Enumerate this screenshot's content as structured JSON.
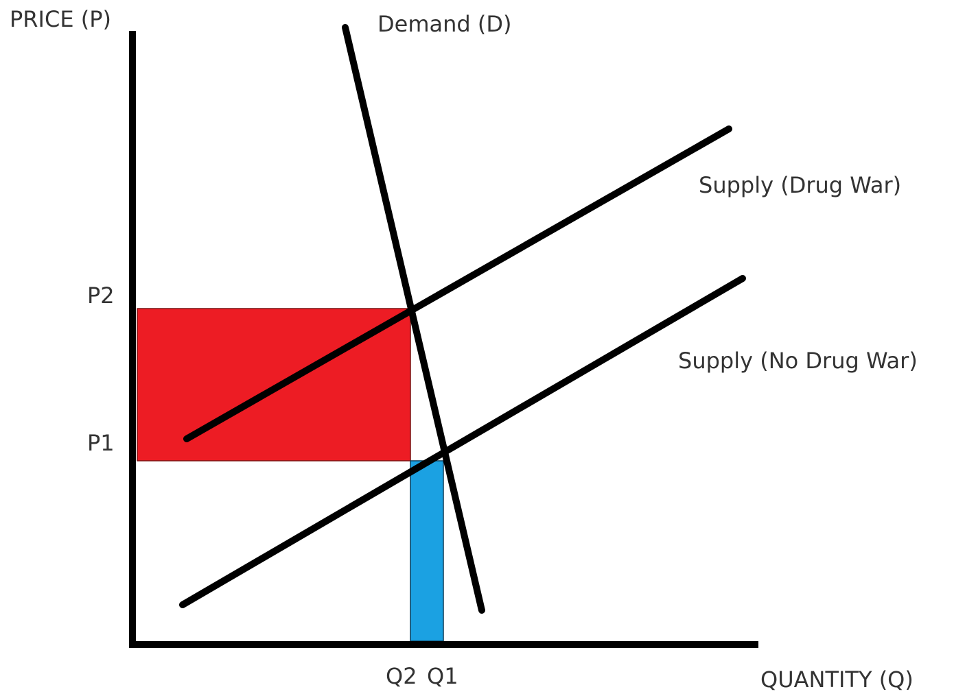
{
  "axes": {
    "y_label": "PRICE (P)",
    "x_label": "QUANTITY (Q)"
  },
  "curves": {
    "demand": "Demand (D)",
    "supply_drug_war": "Supply (Drug War)",
    "supply_no_drug_war": "Supply (No Drug War)"
  },
  "ticks": {
    "p2": "P2",
    "p1": "P1",
    "q2": "Q2",
    "q1": "Q1"
  }
}
